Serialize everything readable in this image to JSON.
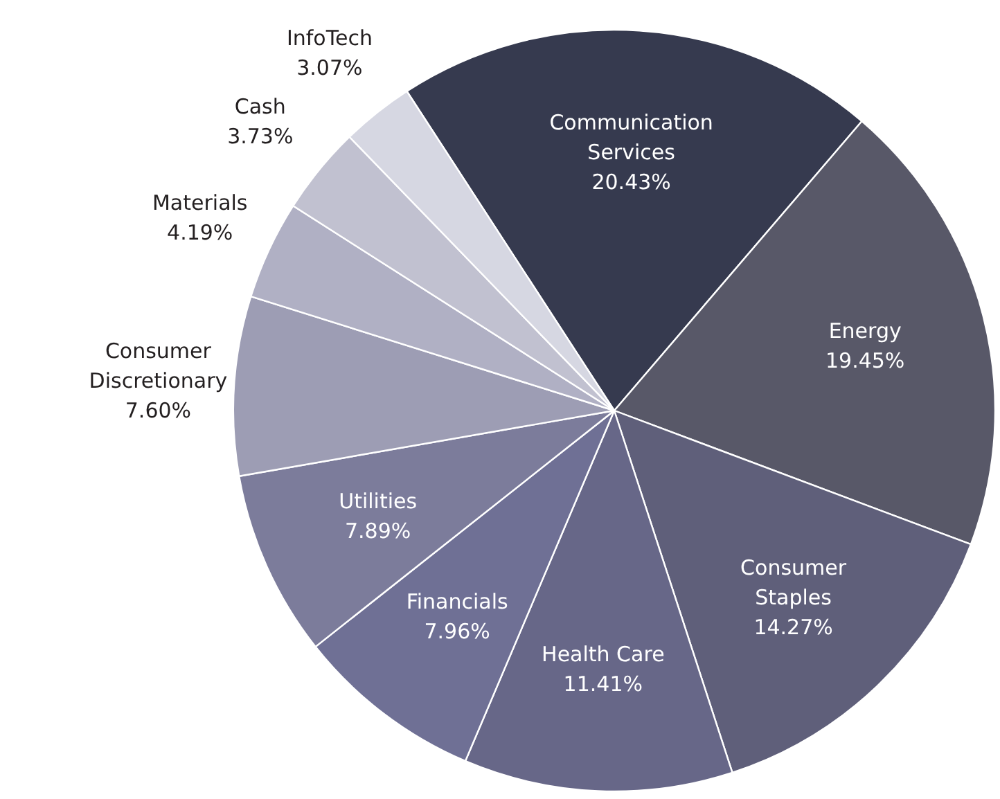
{
  "chart_data": {
    "type": "pie",
    "categories": [
      "Communication Services",
      "Energy",
      "Consumer Staples",
      "Health Care",
      "Financials",
      "Utilities",
      "Consumer Discretionary",
      "Materials",
      "Cash",
      "InfoTech"
    ],
    "values": [
      20.43,
      19.45,
      14.27,
      11.41,
      7.96,
      7.89,
      7.6,
      4.19,
      3.73,
      3.07
    ],
    "colors": [
      "#363a4f",
      "#585868",
      "#5f5f7a",
      "#676788",
      "#6f7095",
      "#7c7c9b",
      "#9d9db4",
      "#b0b0c4",
      "#c1c1d0",
      "#d6d7e2"
    ],
    "value_labels": [
      "20.43%",
      "19.45%",
      "14.27%",
      "11.41%",
      "7.96%",
      "7.89%",
      "7.60%",
      "4.19%",
      "3.73%",
      "3.07%"
    ]
  }
}
